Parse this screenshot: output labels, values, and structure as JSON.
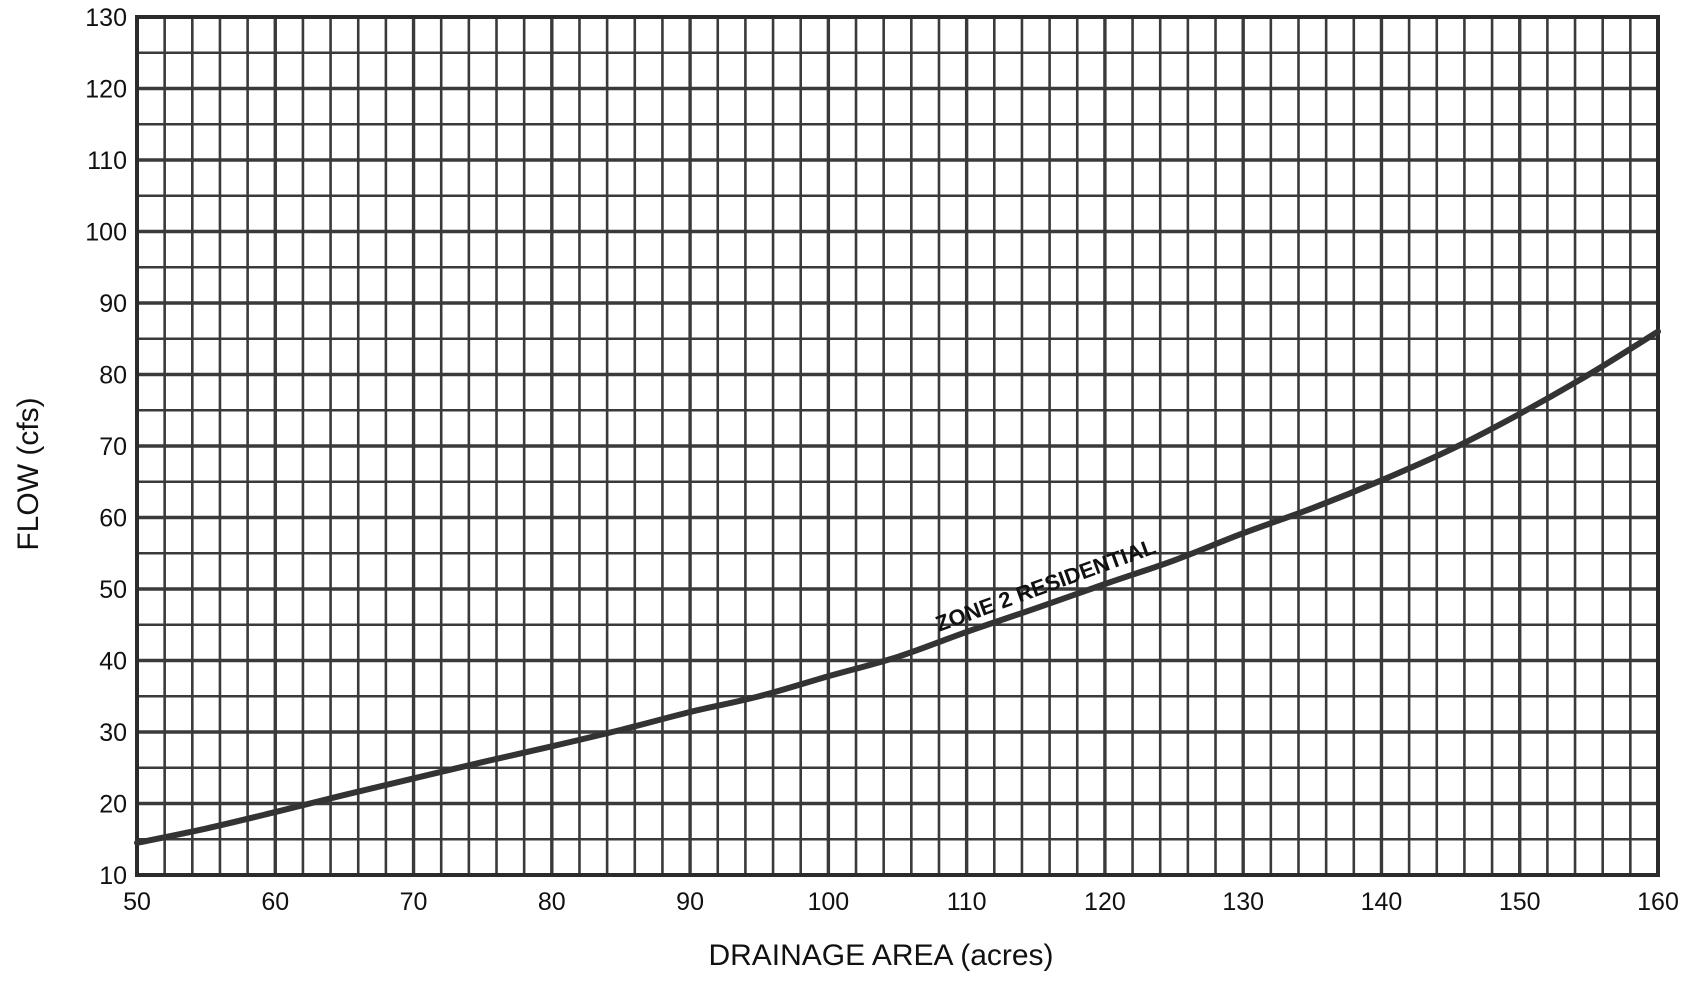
{
  "chart_data": {
    "type": "line",
    "title": "",
    "xlabel": "DRAINAGE AREA (acres)",
    "ylabel": "FLOW (cfs)",
    "xlim": [
      50,
      160
    ],
    "ylim": [
      10,
      130
    ],
    "xticks": [
      50,
      60,
      70,
      80,
      90,
      100,
      110,
      120,
      130,
      140,
      150,
      160
    ],
    "yticks": [
      10,
      20,
      30,
      40,
      50,
      60,
      70,
      80,
      90,
      100,
      110,
      120,
      130
    ],
    "grid": true,
    "grid_minor_x_step": 2,
    "grid_minor_y_step": 5,
    "series": [
      {
        "name": "ZONE 2 RESIDENTIAL",
        "color": "#333333",
        "x": [
          50,
          55,
          60,
          65,
          70,
          75,
          80,
          85,
          90,
          95,
          100,
          105,
          110,
          115,
          120,
          125,
          130,
          135,
          140,
          145,
          150,
          155,
          160
        ],
        "y": [
          14.5,
          16.5,
          18.8,
          21.2,
          23.5,
          25.8,
          28.0,
          30.3,
          32.8,
          35.0,
          37.8,
          40.5,
          44.0,
          47.3,
          50.7,
          54.0,
          57.8,
          61.3,
          65.2,
          69.5,
          74.5,
          80.0,
          86.0
        ]
      }
    ],
    "annotations": [
      {
        "text": "ZONE 2 RESIDENTIAL",
        "x": 108,
        "y": 44,
        "angle_deg": -20
      }
    ],
    "colors": {
      "grid": "#3a3a3a",
      "curve": "#333333",
      "text": "#111111"
    }
  }
}
